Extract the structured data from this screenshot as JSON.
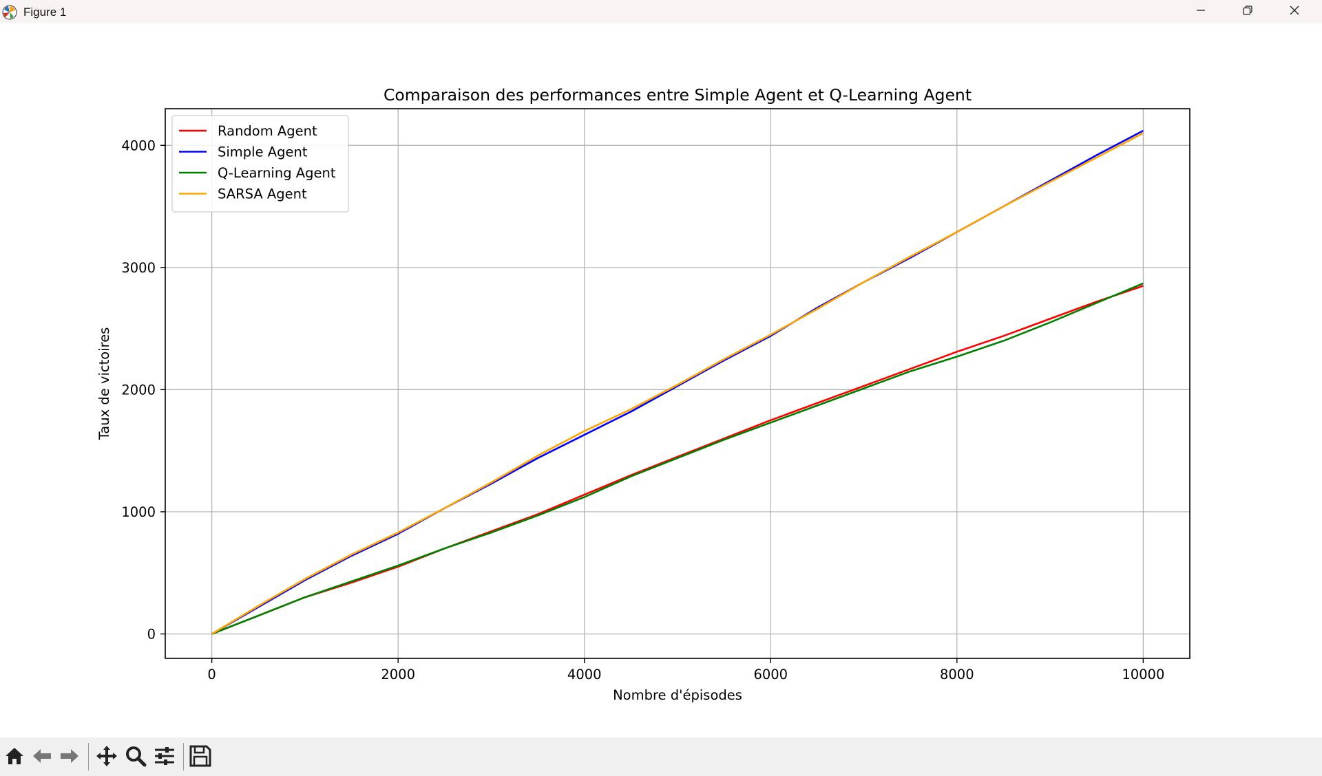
{
  "window": {
    "title": "Figure 1"
  },
  "icons": {
    "app": "matplotlib-icon",
    "minimize": "minimize-icon",
    "restore": "restore-icon",
    "close": "close-icon",
    "toolbar": [
      "home-icon",
      "back-arrow-icon",
      "forward-arrow-icon",
      "pan-icon",
      "zoom-icon",
      "configure-subplots-icon",
      "save-icon"
    ]
  },
  "chart_data": {
    "type": "line",
    "title": "Comparaison des performances entre Simple Agent et Q-Learning Agent",
    "xlabel": "Nombre d'épisodes",
    "ylabel": "Taux de victoires",
    "xlim": [
      -500,
      10500
    ],
    "ylim": [
      -200,
      4300
    ],
    "xticks": [
      0,
      2000,
      4000,
      6000,
      8000,
      10000
    ],
    "yticks": [
      0,
      1000,
      2000,
      3000,
      4000
    ],
    "grid": true,
    "legend_position": "upper-left",
    "x": [
      0,
      500,
      1000,
      1500,
      2000,
      2500,
      3000,
      3500,
      4000,
      4500,
      5000,
      5500,
      6000,
      6500,
      7000,
      7500,
      8000,
      8500,
      9000,
      9500,
      10000
    ],
    "series": [
      {
        "name": "Random Agent",
        "color": "#ff0000",
        "values": [
          0,
          150,
          300,
          420,
          550,
          700,
          840,
          980,
          1140,
          1300,
          1450,
          1600,
          1750,
          1890,
          2030,
          2170,
          2310,
          2440,
          2580,
          2720,
          2850
        ]
      },
      {
        "name": "Simple Agent",
        "color": "#0000ff",
        "values": [
          0,
          220,
          440,
          640,
          820,
          1030,
          1230,
          1440,
          1630,
          1820,
          2030,
          2240,
          2440,
          2670,
          2880,
          3080,
          3290,
          3500,
          3710,
          3920,
          4120
        ]
      },
      {
        "name": "Q-Learning Agent",
        "color": "#008000",
        "values": [
          0,
          150,
          300,
          430,
          560,
          700,
          830,
          970,
          1120,
          1290,
          1440,
          1590,
          1730,
          1870,
          2010,
          2150,
          2270,
          2400,
          2550,
          2710,
          2870
        ]
      },
      {
        "name": "SARSA Agent",
        "color": "#ffa500",
        "values": [
          0,
          230,
          450,
          650,
          830,
          1030,
          1240,
          1460,
          1660,
          1840,
          2040,
          2250,
          2450,
          2660,
          2880,
          3090,
          3290,
          3500,
          3700,
          3900,
          4100
        ]
      }
    ]
  }
}
